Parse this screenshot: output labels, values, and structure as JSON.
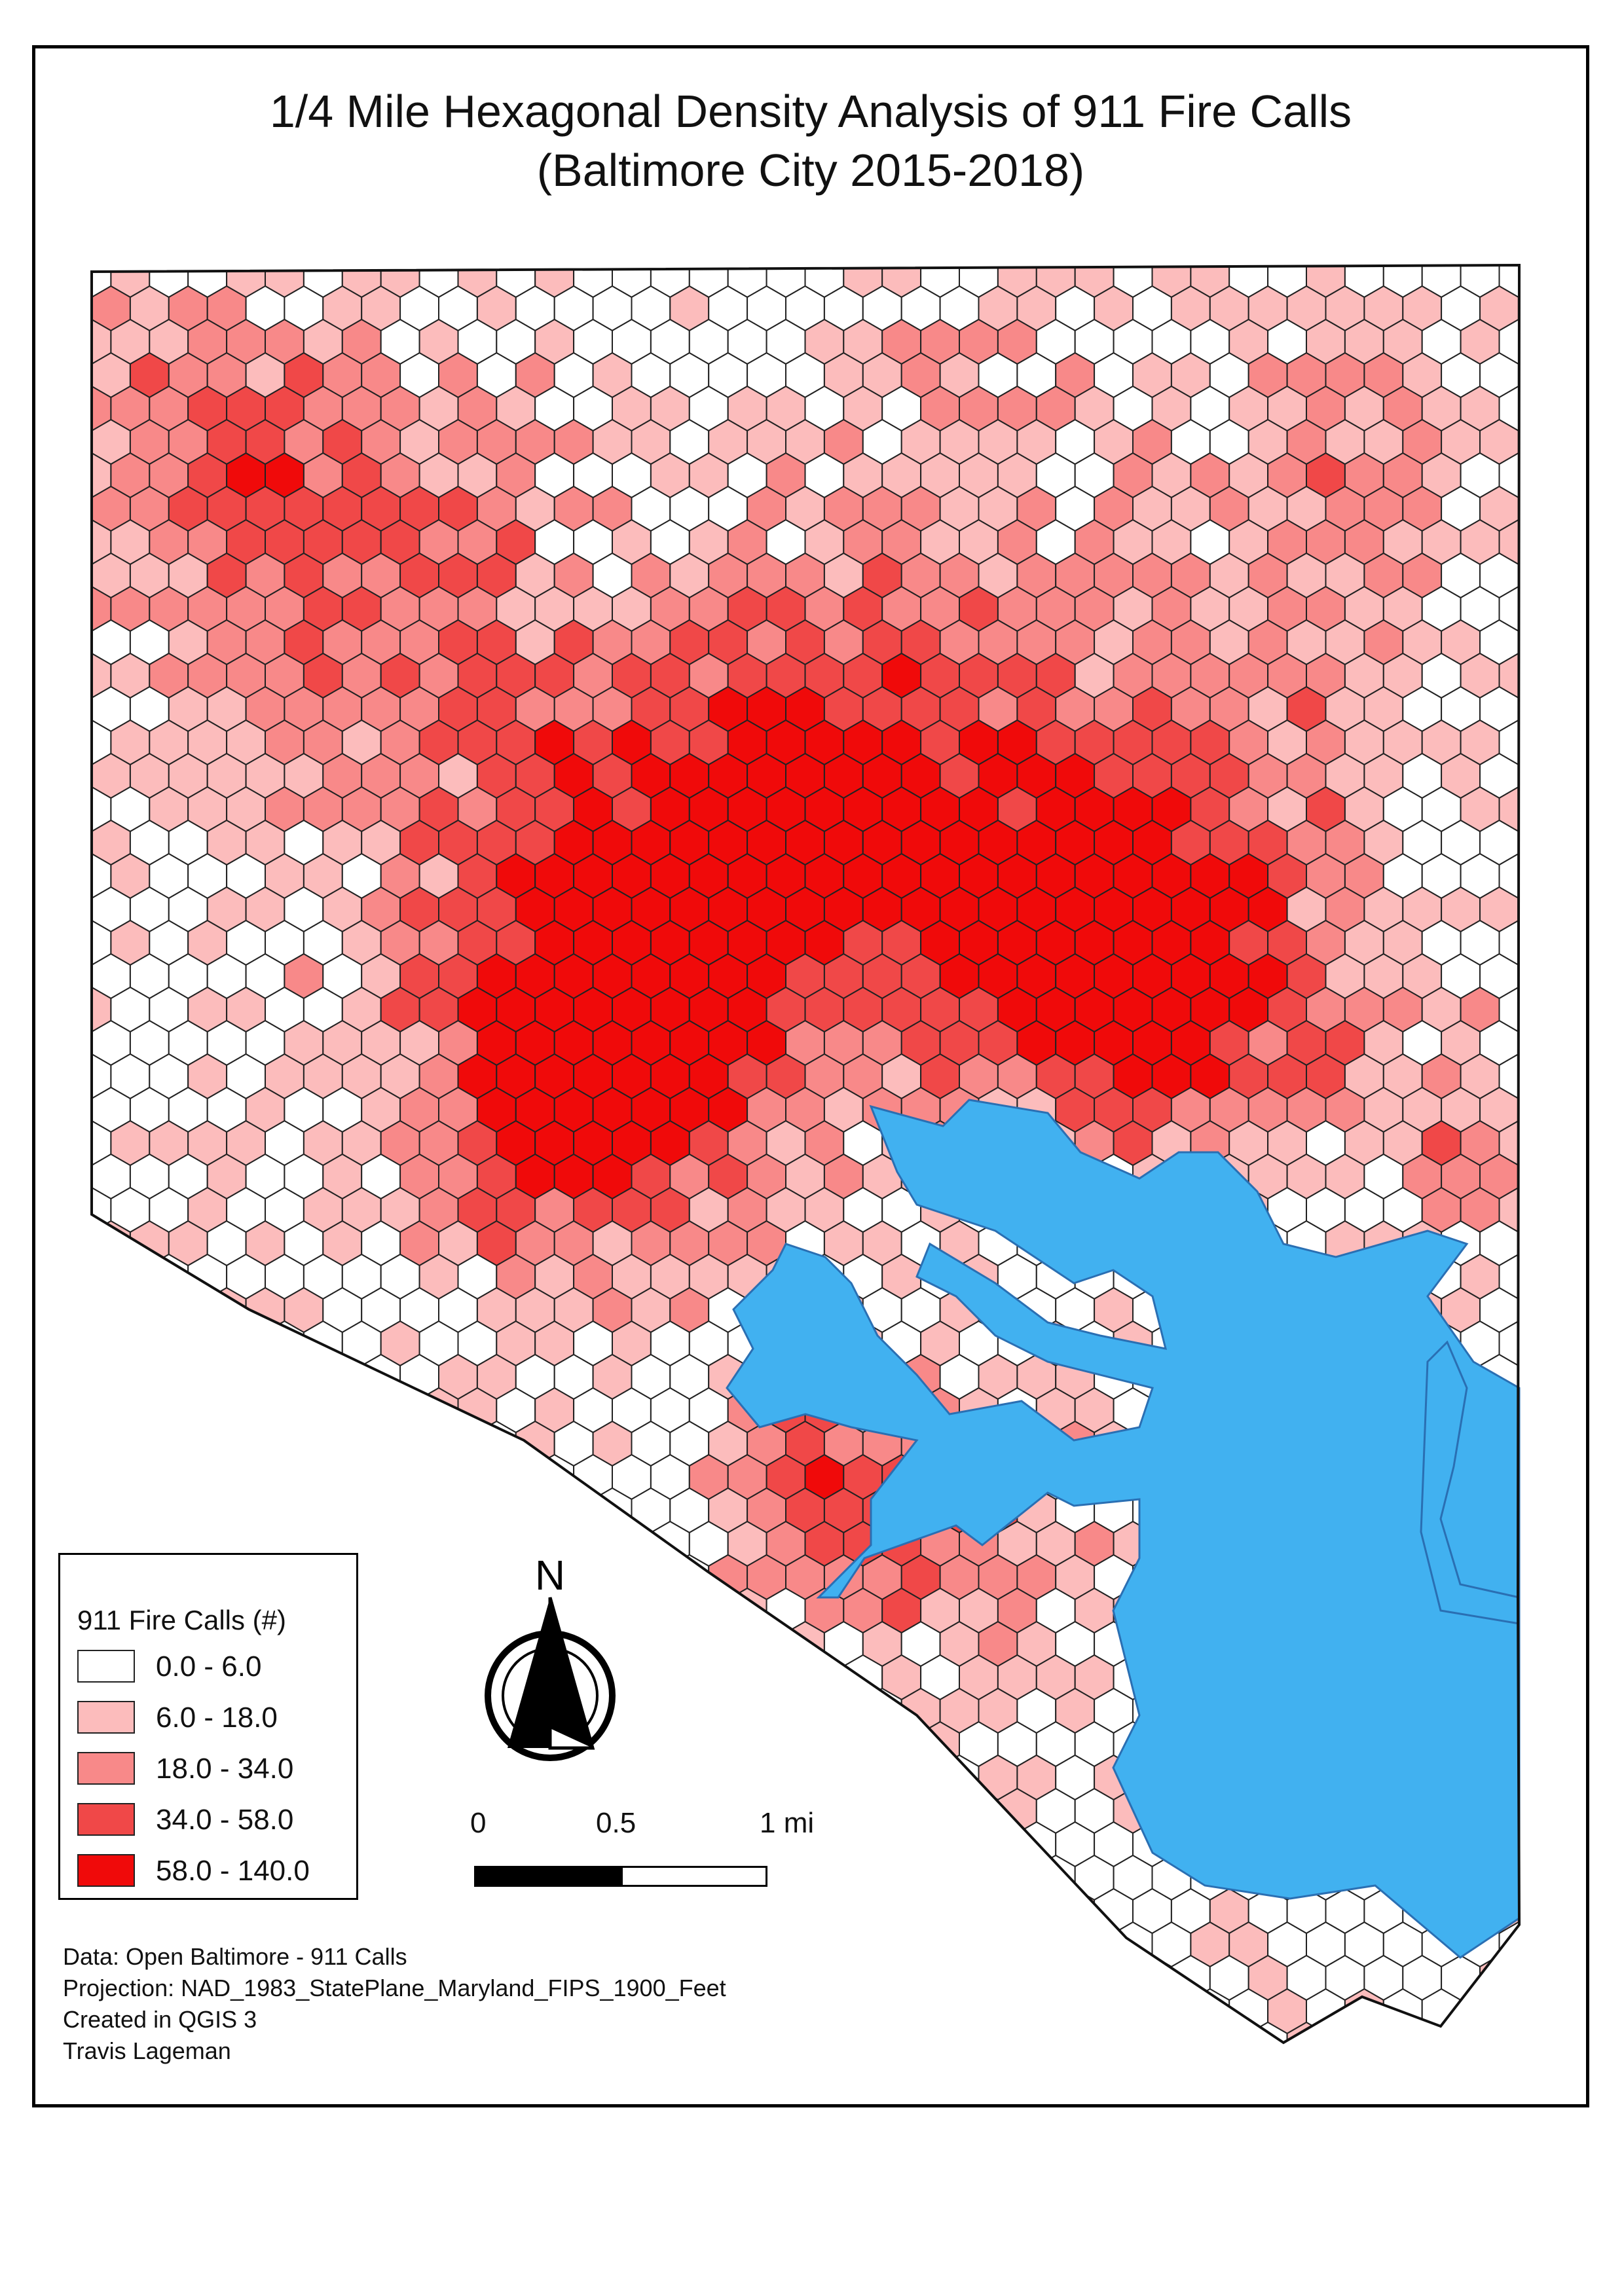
{
  "title": {
    "line1": "1/4 Mile Hexagonal Density Analysis of 911 Fire Calls",
    "line2": "(Baltimore City 2015-2018)"
  },
  "legend": {
    "title": "911 Fire Calls (#)",
    "classes": [
      {
        "label": "0.0 - 6.0",
        "color": "#ffffff"
      },
      {
        "label": "6.0 - 18.0",
        "color": "#fcbcbc"
      },
      {
        "label": "18.0 - 34.0",
        "color": "#f88989"
      },
      {
        "label": "34.0 - 58.0",
        "color": "#f04848"
      },
      {
        "label": "58.0 - 140.0",
        "color": "#f00a0a"
      }
    ]
  },
  "north_arrow": {
    "label": "N",
    "icon": "north-arrow-icon"
  },
  "scale_bar": {
    "labels": [
      "0",
      "0.5",
      "1 mi"
    ]
  },
  "credits": [
    "Data: Open Baltimore - 911 Calls",
    "Projection: NAD_1983_StatePlane_Maryland_FIPS_1900_Feet",
    "Created in QGIS 3",
    "Travis Lageman"
  ],
  "colors": {
    "water": "#41b1f0",
    "hex_stroke": "#222222",
    "frame": "#000000"
  }
}
